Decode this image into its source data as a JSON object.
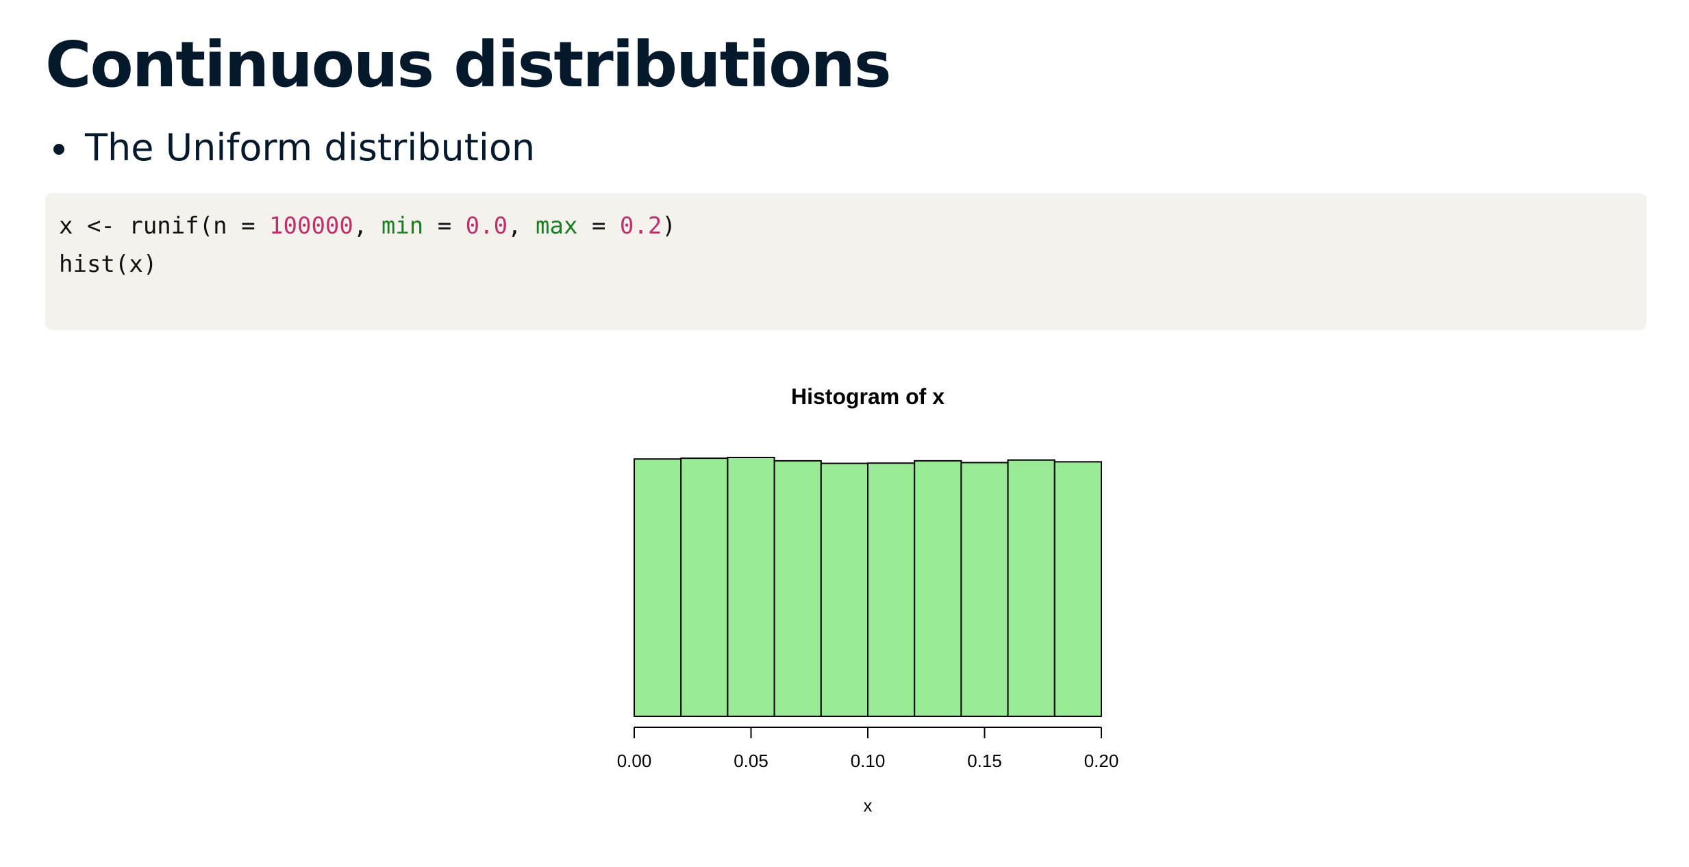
{
  "slide": {
    "title": "Continuous distributions",
    "bullets": [
      "The Uniform distribution"
    ]
  },
  "code": {
    "line1": {
      "t1": "x <- runif(n = ",
      "n": "100000",
      "t2": ", ",
      "min_arg": "min",
      "t3": " = ",
      "min_val": "0.0",
      "t4": ", ",
      "max_arg": "max",
      "t5": " = ",
      "max_val": "0.2",
      "t6": ")"
    },
    "line2": "hist(x)"
  },
  "colors": {
    "bar_fill": "#98eb94",
    "bar_stroke": "#000000",
    "code_number": "#c0306a",
    "code_argument": "#1a7f22",
    "code_background": "#f5f1ec"
  },
  "chart_data": {
    "type": "bar",
    "title": "Histogram of x",
    "xlabel": "x",
    "ylabel": "",
    "bins": [
      [
        0.0,
        0.02
      ],
      [
        0.02,
        0.04
      ],
      [
        0.04,
        0.06
      ],
      [
        0.06,
        0.08
      ],
      [
        0.08,
        0.1
      ],
      [
        0.1,
        0.12
      ],
      [
        0.12,
        0.14
      ],
      [
        0.14,
        0.16
      ],
      [
        0.16,
        0.18
      ],
      [
        0.18,
        0.2
      ]
    ],
    "values": [
      10050,
      10080,
      10110,
      9980,
      9880,
      9890,
      9980,
      9910,
      10010,
      9940
    ],
    "x_ticks": [
      0.0,
      0.05,
      0.1,
      0.15,
      0.2
    ],
    "x_tick_labels": [
      "0.00",
      "0.05",
      "0.10",
      "0.15",
      "0.20"
    ],
    "xlim": [
      0.0,
      0.2
    ],
    "ylim": [
      0,
      10110
    ],
    "grid": false,
    "y_axis_shown": false
  }
}
